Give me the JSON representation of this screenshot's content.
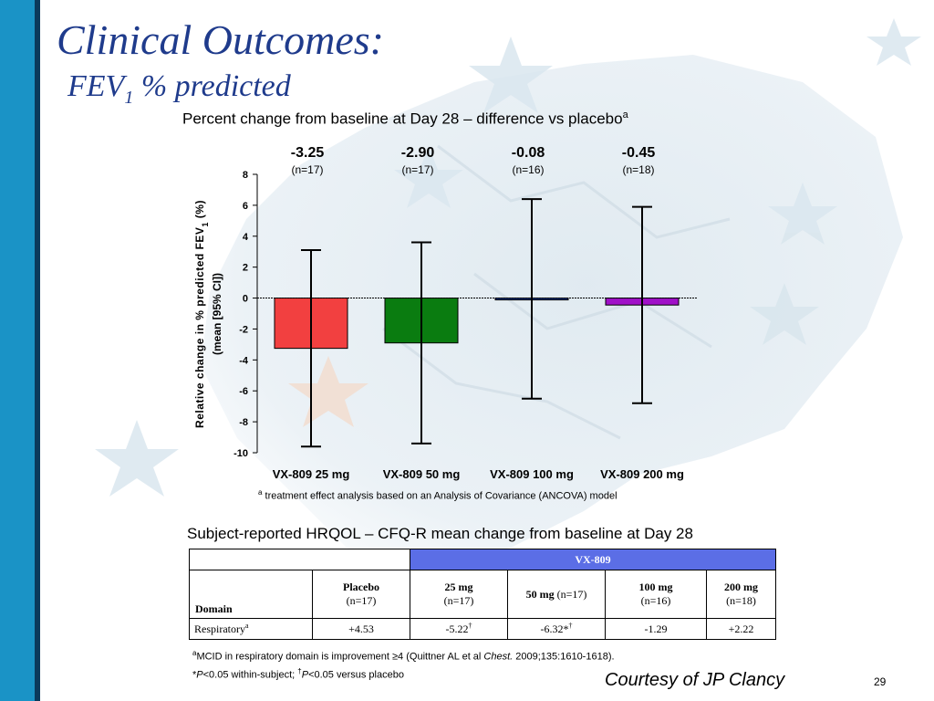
{
  "slide": {
    "title": "Clinical Outcomes:",
    "subtitle_main": "FEV",
    "subtitle_sub": "1",
    "subtitle_rest": " % predicted",
    "chart_heading": "Percent change from baseline at Day 28 – difference vs placebo",
    "chart_heading_sup": "a",
    "footnote_sup": "a",
    "footnote_text": " treatment effect analysis based on an Analysis of Covariance (ANCOVA) model",
    "table_heading": "Subject-reported HRQOL – CFQ-R mean change from baseline at Day 28",
    "note1_sup": "a",
    "note1_text": "MCID in respiratory domain is improvement ≥4 (Quittner AL et al ",
    "note1_journal": "Chest.",
    "note1_rest": " 2009;135:1610-1618).",
    "note2_pre": "*",
    "note2_p1": "P",
    "note2_mid": "<0.05 within-subject; ",
    "note2_dagger": "†",
    "note2_p2": "P",
    "note2_end": "<0.05 versus placebo",
    "courtesy": "Courtesy of JP Clancy",
    "page_number": "29",
    "left_bar_color": "#1a93c6",
    "title_color": "#1f3b8c"
  },
  "chart_data": {
    "type": "bar",
    "ylabel_line1": "Relative change in % predicted FEV",
    "ylabel_sub": "1",
    "ylabel_line1_end": " (%)",
    "ylabel_line2": "(mean [95% CI])",
    "ylim": [
      -10,
      8
    ],
    "yticks": [
      "8",
      "6",
      "4",
      "2",
      "0",
      "-2",
      "-4",
      "-6",
      "-8",
      "-10"
    ],
    "categories": [
      "VX-809 25 mg",
      "VX-809 50 mg",
      "VX-809 100 mg",
      "VX-809 200 mg"
    ],
    "values": [
      -3.25,
      -2.9,
      -0.08,
      -0.45
    ],
    "value_labels": [
      "-3.25",
      "-2.90",
      "-0.08",
      "-0.45"
    ],
    "n_labels": [
      "(n=17)",
      "(n=17)",
      "(n=16)",
      "(n=18)"
    ],
    "ci_low": [
      -9.6,
      -9.4,
      -6.5,
      -6.8
    ],
    "ci_high": [
      3.1,
      3.6,
      6.4,
      5.9
    ],
    "colors": [
      "#f24040",
      "#0a7c10",
      "#1f3b8c",
      "#a010c8"
    ]
  },
  "table": {
    "group_header": "VX-809",
    "domain_label": "Domain",
    "columns": [
      {
        "name": "Placebo",
        "n": "(n=17)"
      },
      {
        "name": "25 mg",
        "n": "(n=17)"
      },
      {
        "name": "50 mg",
        "n": " (n=17)"
      },
      {
        "name": "100 mg",
        "n": "(n=16)"
      },
      {
        "name": "200 mg",
        "n": "(n=18)"
      }
    ],
    "row_label": "Respiratory",
    "row_label_sup": "a",
    "row_values": [
      "+4.53",
      "-5.22",
      "-6.32*",
      "-1.29",
      "+2.22"
    ],
    "row_value_sups": [
      "",
      "†",
      "†",
      "",
      ""
    ]
  }
}
